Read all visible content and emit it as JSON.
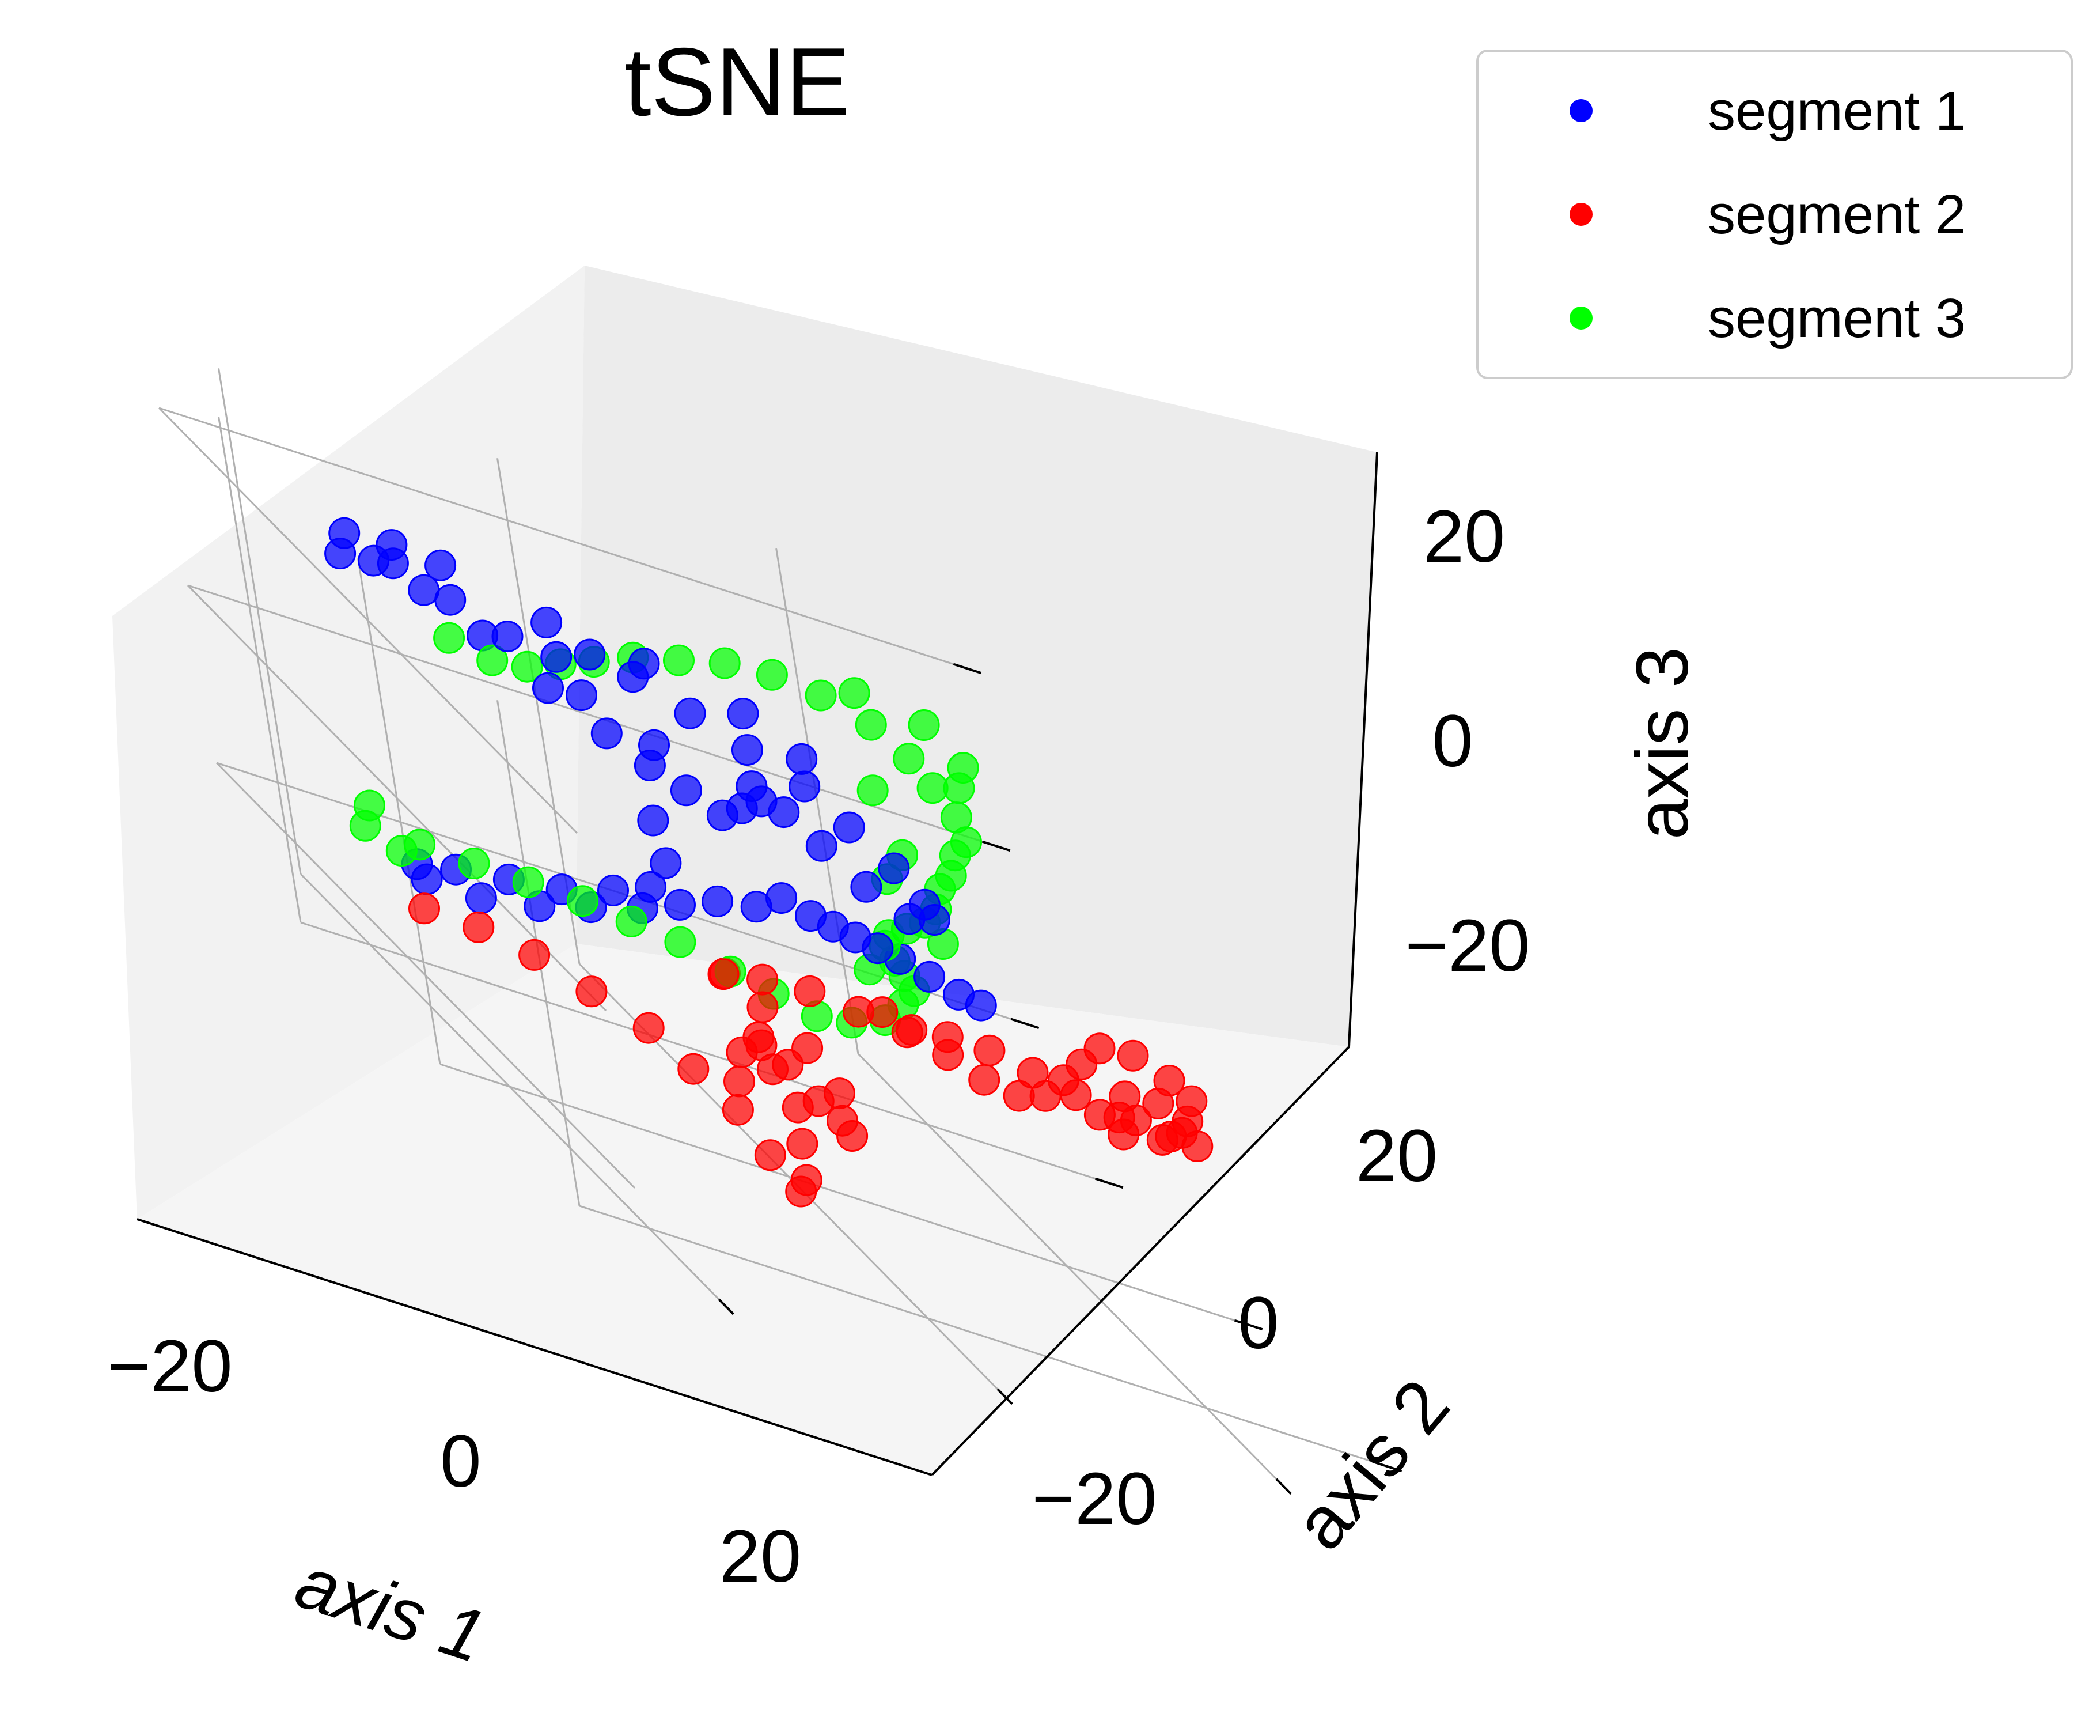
{
  "chart_data": {
    "type": "scatter",
    "projection": "3d",
    "title": "tSNE",
    "xlabel": "axis 1",
    "ylabel": "axis 2",
    "zlabel": "axis 3",
    "xlim": [
      -25,
      32
    ],
    "ylim": [
      -30,
      30
    ],
    "zlim": [
      -30,
      27
    ],
    "xticks": [
      -20,
      0,
      20
    ],
    "yticks": [
      -20,
      0,
      20
    ],
    "zticks": [
      -20,
      0,
      20
    ],
    "xtick_labels": [
      "−20",
      "0",
      "20"
    ],
    "ytick_labels": [
      "−20",
      "0",
      "20"
    ],
    "ztick_labels": [
      "−20",
      "0",
      "20"
    ],
    "grid": true,
    "legend_position": "top-right",
    "series": [
      {
        "name": "segment 1",
        "color": "#0000ff",
        "points": [
          [
            -18,
            10,
            22
          ],
          [
            -15,
            8,
            21
          ],
          [
            -12,
            6,
            20
          ],
          [
            -9,
            5,
            20
          ],
          [
            -6,
            6,
            21
          ],
          [
            -3,
            6,
            20
          ],
          [
            0,
            4,
            19
          ],
          [
            3,
            2,
            18
          ],
          [
            6,
            0,
            17
          ],
          [
            8,
            -2,
            15
          ],
          [
            10,
            -4,
            13
          ],
          [
            11,
            -6,
            11
          ],
          [
            12,
            -5,
            9
          ],
          [
            11,
            -3,
            7
          ],
          [
            9,
            -1,
            8
          ],
          [
            7,
            1,
            10
          ],
          [
            5,
            2,
            12
          ],
          [
            3,
            1,
            13
          ],
          [
            1,
            0,
            12
          ],
          [
            -1,
            -1,
            11
          ],
          [
            -3,
            0,
            12
          ],
          [
            -5,
            1,
            13
          ],
          [
            -7,
            3,
            14
          ],
          [
            -10,
            5,
            16
          ],
          [
            -13,
            8,
            18
          ],
          [
            -16,
            10,
            20
          ],
          [
            -19,
            11,
            21
          ],
          [
            -21,
            12,
            20
          ],
          [
            -20,
            13,
            22
          ],
          [
            -17,
            12,
            23
          ],
          [
            -14,
            11,
            23
          ],
          [
            -8,
            8,
            22
          ],
          [
            -2,
            6,
            22
          ],
          [
            4,
            4,
            21
          ],
          [
            7,
            2,
            19
          ],
          [
            2,
            0,
            15
          ],
          [
            -4,
            2,
            15
          ],
          [
            -8,
            4,
            17
          ],
          [
            -5,
            2,
            6
          ],
          [
            -5,
            1,
            2
          ],
          [
            -6,
            2,
            -2
          ],
          [
            -8,
            4,
            -5
          ],
          [
            -11,
            6,
            -8
          ],
          [
            -14,
            8,
            -10
          ],
          [
            -17,
            10,
            -12
          ],
          [
            -19,
            12,
            -14
          ],
          [
            -18,
            13,
            -16
          ],
          [
            -15,
            11,
            -15
          ],
          [
            -12,
            8,
            -12
          ],
          [
            -9,
            6,
            -9
          ],
          [
            -6,
            4,
            -6
          ],
          [
            -4,
            2,
            -3
          ],
          [
            -2,
            0,
            0
          ],
          [
            0,
            -2,
            2
          ],
          [
            2,
            -2,
            4
          ],
          [
            4,
            -2,
            3
          ],
          [
            6,
            -1,
            2
          ],
          [
            8,
            0,
            1
          ],
          [
            10,
            1,
            0
          ],
          [
            12,
            2,
            -1
          ],
          [
            14,
            2,
            -2
          ],
          [
            16,
            2,
            -3
          ],
          [
            18,
            3,
            -4
          ]
        ]
      },
      {
        "name": "segment 2",
        "color": "#ff0000",
        "points": [
          [
            -19,
            12,
            -19
          ],
          [
            -16,
            10,
            -18
          ],
          [
            -13,
            8,
            -18
          ],
          [
            -10,
            6,
            -19
          ],
          [
            -7,
            4,
            -20
          ],
          [
            -5,
            2,
            -22
          ],
          [
            -3,
            0,
            -24
          ],
          [
            -2,
            -2,
            -27
          ],
          [
            -1,
            -4,
            -29
          ],
          [
            0,
            -3,
            -28
          ],
          [
            1,
            -1,
            -25
          ],
          [
            2,
            1,
            -22
          ],
          [
            1,
            2,
            -19
          ],
          [
            0,
            1,
            -16
          ],
          [
            -1,
            -1,
            -14
          ],
          [
            0,
            -3,
            -15
          ],
          [
            1,
            -5,
            -17
          ],
          [
            3,
            -4,
            -19
          ],
          [
            4,
            -2,
            -17
          ],
          [
            3,
            0,
            -14
          ],
          [
            1,
            2,
            -12
          ],
          [
            -1,
            3,
            -10
          ],
          [
            -2,
            1,
            -9
          ],
          [
            0,
            -1,
            -7
          ],
          [
            3,
            -2,
            -6
          ],
          [
            6,
            -3,
            -6
          ],
          [
            9,
            -4,
            -6
          ],
          [
            12,
            -4,
            -5
          ],
          [
            15,
            -4,
            -5
          ],
          [
            18,
            -4,
            -6
          ],
          [
            21,
            -4,
            -7
          ],
          [
            24,
            -4,
            -8
          ],
          [
            27,
            -4,
            -9
          ],
          [
            29,
            -3,
            -8
          ],
          [
            30,
            -2,
            -7
          ],
          [
            31,
            -1,
            -5
          ],
          [
            30,
            0,
            -4
          ],
          [
            28,
            1,
            -3
          ],
          [
            26,
            2,
            -4
          ],
          [
            24,
            1,
            -6
          ],
          [
            22,
            0,
            -8
          ],
          [
            20,
            -1,
            -10
          ],
          [
            18,
            -1,
            -11
          ],
          [
            16,
            0,
            -11
          ],
          [
            14,
            1,
            -10
          ],
          [
            12,
            2,
            -9
          ],
          [
            10,
            2,
            -8
          ],
          [
            28,
            -2,
            -6
          ],
          [
            30,
            -3,
            -9
          ],
          [
            27,
            0,
            -10
          ],
          [
            25,
            -2,
            -11
          ],
          [
            23,
            -3,
            -9
          ],
          [
            26,
            -1,
            -7
          ],
          [
            29,
            -1,
            -10
          ],
          [
            -3,
            -1,
            -20
          ],
          [
            -2,
            0,
            -17
          ],
          [
            4,
            -3,
            -21
          ]
        ]
      },
      {
        "name": "segment 3",
        "color": "#00ff00",
        "points": [
          [
            -22,
            13,
            -12
          ],
          [
            -19,
            11,
            -11
          ],
          [
            -16,
            9,
            -10
          ],
          [
            -13,
            7,
            -9
          ],
          [
            -10,
            5,
            -8
          ],
          [
            -7,
            4,
            -8
          ],
          [
            -4,
            3,
            -8
          ],
          [
            -1,
            2,
            -9
          ],
          [
            2,
            2,
            -10
          ],
          [
            5,
            2,
            -11
          ],
          [
            8,
            3,
            -11
          ],
          [
            11,
            4,
            -10
          ],
          [
            13,
            5,
            -8
          ],
          [
            14,
            5,
            -6
          ],
          [
            13,
            4,
            -4
          ],
          [
            12,
            3,
            -2
          ],
          [
            11,
            2,
            0
          ],
          [
            11,
            1,
            2
          ],
          [
            12,
            0,
            4
          ],
          [
            13,
            -1,
            6
          ],
          [
            14,
            -1,
            8
          ],
          [
            15,
            0,
            10
          ],
          [
            16,
            0,
            12
          ],
          [
            17,
            1,
            14
          ],
          [
            18,
            1,
            16
          ],
          [
            18,
            2,
            18
          ],
          [
            17,
            3,
            20
          ],
          [
            16,
            4,
            22
          ],
          [
            14,
            5,
            24
          ],
          [
            11,
            6,
            25
          ],
          [
            8,
            7,
            25
          ],
          [
            5,
            8,
            24
          ],
          [
            2,
            9,
            22
          ],
          [
            -1,
            10,
            20
          ],
          [
            -4,
            10,
            18
          ],
          [
            -7,
            9,
            17
          ],
          [
            -10,
            8,
            16
          ],
          [
            -13,
            7,
            16
          ],
          [
            -16,
            7,
            17
          ],
          [
            19,
            3,
            21
          ],
          [
            20,
            4,
            23
          ],
          [
            14,
            7,
            26
          ],
          [
            18,
            5,
            26
          ],
          [
            12,
            2,
            18
          ],
          [
            13,
            1,
            12
          ],
          [
            12,
            2,
            8
          ],
          [
            10,
            3,
            -4
          ],
          [
            -20,
            12,
            -13
          ],
          [
            -21,
            14,
            -10
          ],
          [
            15,
            1,
            3
          ]
        ]
      }
    ]
  }
}
